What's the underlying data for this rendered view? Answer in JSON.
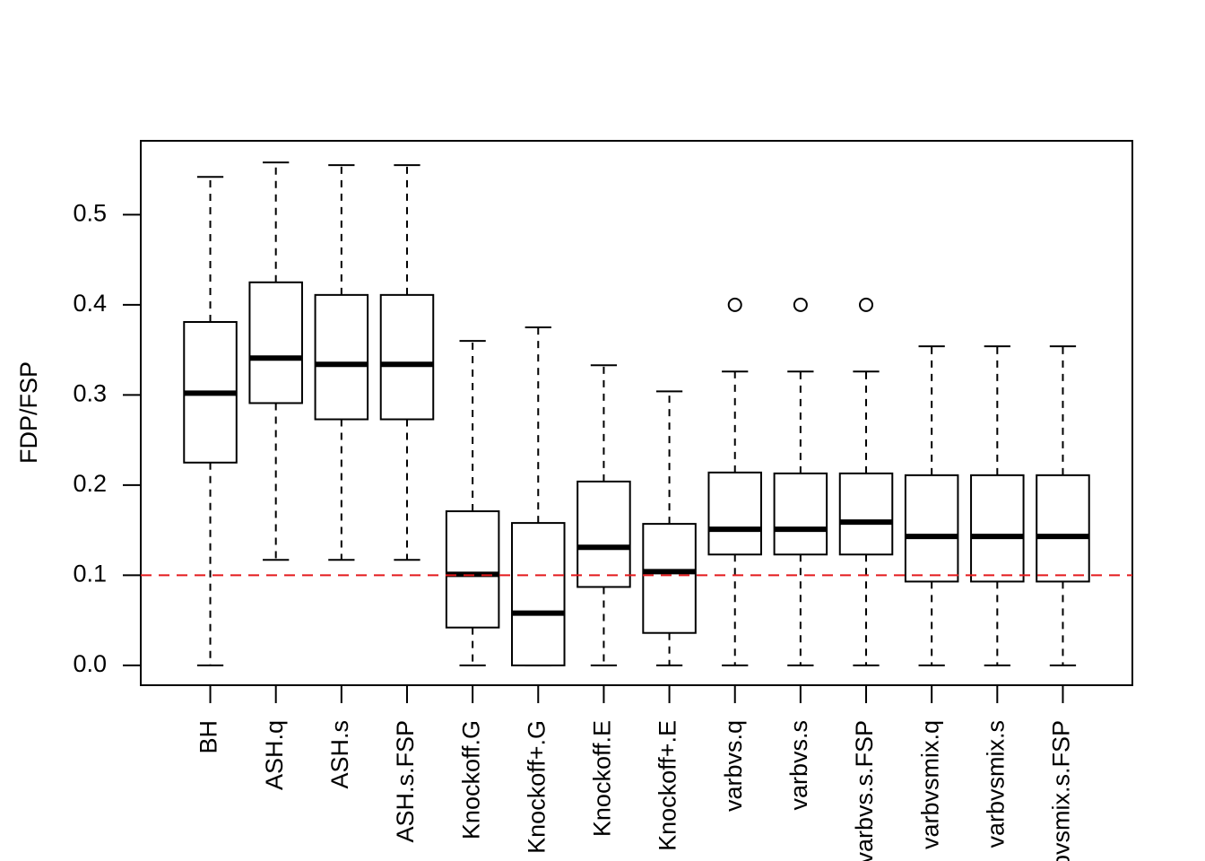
{
  "chart_data": {
    "type": "boxplot",
    "y_label": "FDP/FSP",
    "categories": [
      "BH",
      "ASH.q",
      "ASH.s",
      "ASH.s.FSP",
      "Knockoff.G",
      "Knockoff+.G",
      "Knockoff.E",
      "Knockoff+.E",
      "varbvs.q",
      "varbvs.s",
      "varbvs.s.FSP",
      "varbvsmix.q",
      "varbvsmix.s",
      "varbvsmix.s.FSP"
    ],
    "boxes": [
      {
        "whislo": 0,
        "q1": 0.225,
        "med": 0.302,
        "q3": 0.381,
        "whishi": 0.542,
        "outliers": []
      },
      {
        "whislo": 0.117,
        "q1": 0.291,
        "med": 0.341,
        "q3": 0.425,
        "whishi": 0.558,
        "outliers": []
      },
      {
        "whislo": 0.117,
        "q1": 0.273,
        "med": 0.334,
        "q3": 0.411,
        "whishi": 0.555,
        "outliers": []
      },
      {
        "whislo": 0.117,
        "q1": 0.273,
        "med": 0.334,
        "q3": 0.411,
        "whishi": 0.555,
        "outliers": []
      },
      {
        "whislo": 0,
        "q1": 0.042,
        "med": 0.101,
        "q3": 0.171,
        "whishi": 0.36,
        "outliers": []
      },
      {
        "whislo": 0,
        "q1": 0,
        "med": 0.058,
        "q3": 0.158,
        "whishi": 0.375,
        "outliers": []
      },
      {
        "whislo": 0,
        "q1": 0.087,
        "med": 0.131,
        "q3": 0.204,
        "whishi": 0.333,
        "outliers": []
      },
      {
        "whislo": 0,
        "q1": 0.036,
        "med": 0.104,
        "q3": 0.157,
        "whishi": 0.304,
        "outliers": []
      },
      {
        "whislo": 0,
        "q1": 0.123,
        "med": 0.151,
        "q3": 0.214,
        "whishi": 0.326,
        "outliers": [
          0.4
        ]
      },
      {
        "whislo": 0,
        "q1": 0.123,
        "med": 0.151,
        "q3": 0.213,
        "whishi": 0.326,
        "outliers": [
          0.4
        ]
      },
      {
        "whislo": 0,
        "q1": 0.123,
        "med": 0.159,
        "q3": 0.213,
        "whishi": 0.326,
        "outliers": [
          0.4
        ]
      },
      {
        "whislo": 0,
        "q1": 0.093,
        "med": 0.143,
        "q3": 0.211,
        "whishi": 0.354,
        "outliers": []
      },
      {
        "whislo": 0,
        "q1": 0.093,
        "med": 0.143,
        "q3": 0.211,
        "whishi": 0.354,
        "outliers": []
      },
      {
        "whislo": 0,
        "q1": 0.093,
        "med": 0.143,
        "q3": 0.211,
        "whishi": 0.354,
        "outliers": []
      }
    ],
    "ylim": [
      -0.022,
      0.582
    ],
    "yticks": [
      {
        "value": 0,
        "label": "0.0"
      },
      0.1,
      0.2,
      0.3,
      0.4,
      0.5
    ],
    "reference_line": {
      "value": 0.1,
      "color": "#e41a1c"
    },
    "color": "#000000"
  }
}
